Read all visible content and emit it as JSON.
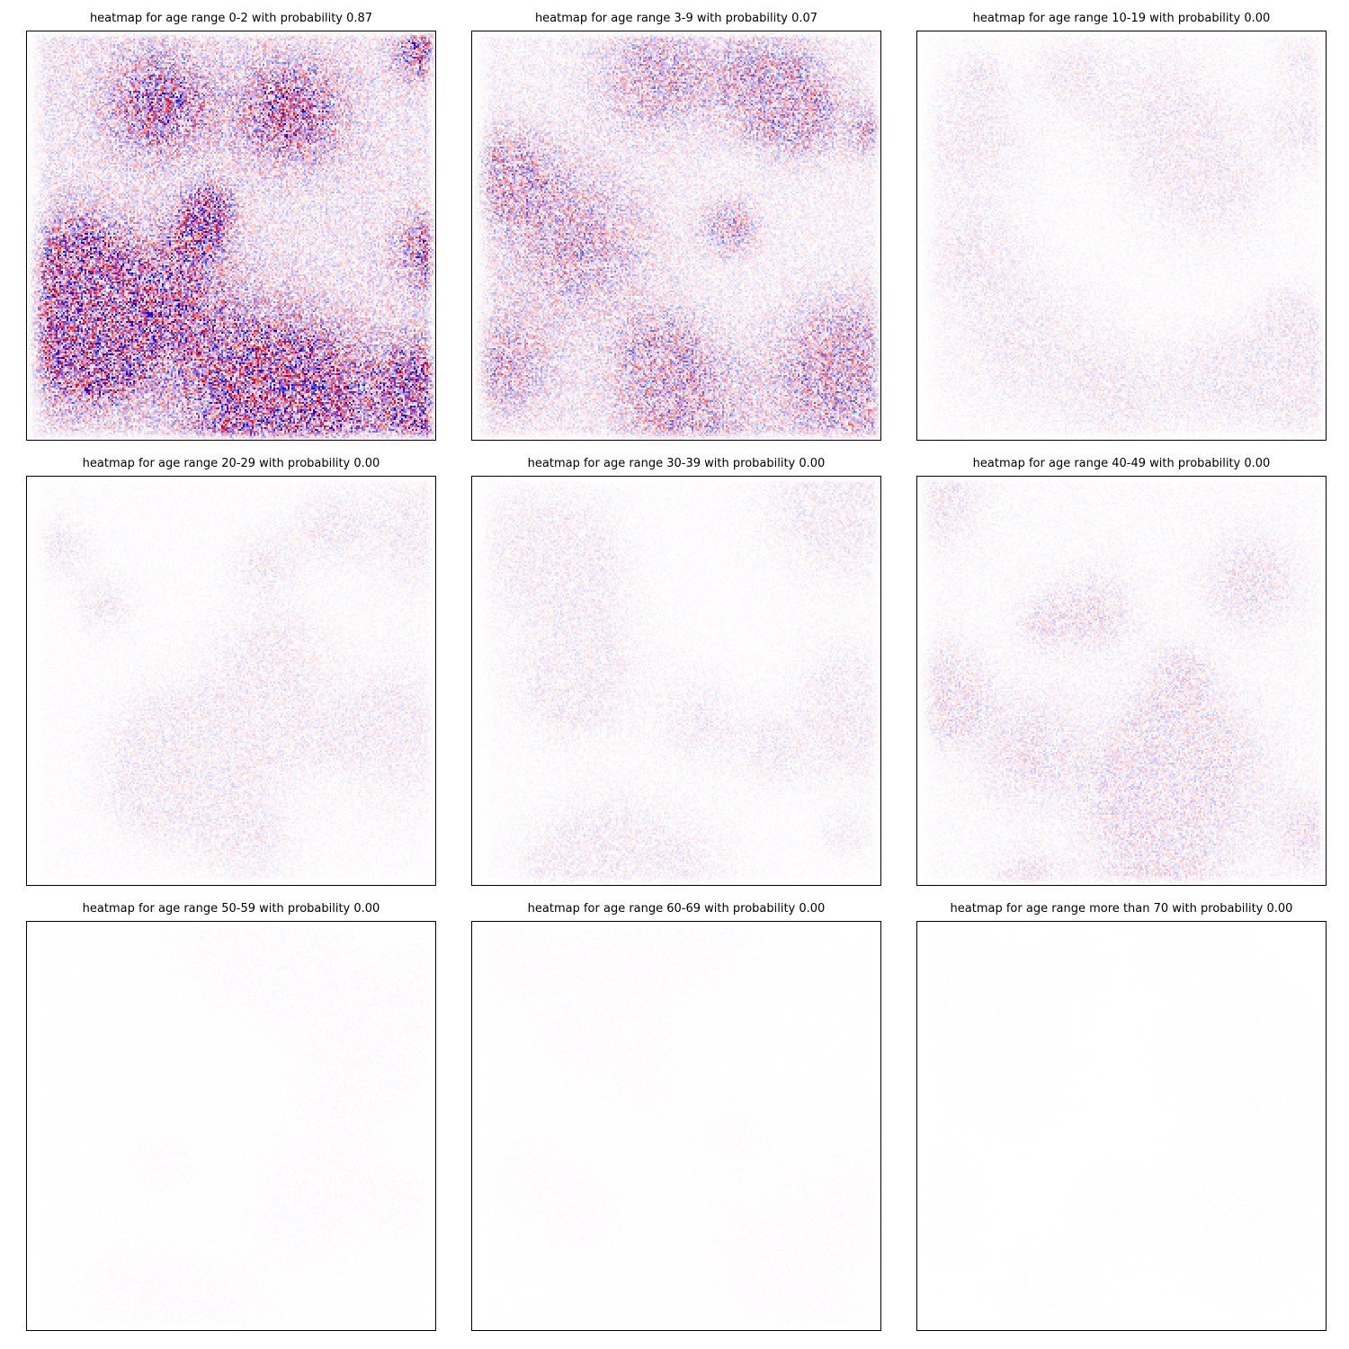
{
  "chart_data": [
    {
      "type": "heatmap",
      "title": "heatmap for age range 0-2 with probability 0.87",
      "probability": 0.87,
      "intensity": 1.0,
      "colormap": "bwr",
      "axes_ticks": false
    },
    {
      "type": "heatmap",
      "title": "heatmap for age range 3-9 with probability 0.07",
      "probability": 0.07,
      "intensity": 0.55,
      "colormap": "bwr",
      "axes_ticks": false
    },
    {
      "type": "heatmap",
      "title": "heatmap for age range 10-19 with probability 0.00",
      "probability": 0.0,
      "intensity": 0.14,
      "colormap": "bwr",
      "axes_ticks": false
    },
    {
      "type": "heatmap",
      "title": "heatmap for age range 20-29 with probability 0.00",
      "probability": 0.0,
      "intensity": 0.13,
      "colormap": "bwr",
      "axes_ticks": false
    },
    {
      "type": "heatmap",
      "title": "heatmap for age range 30-39 with probability 0.00",
      "probability": 0.0,
      "intensity": 0.12,
      "colormap": "bwr",
      "axes_ticks": false
    },
    {
      "type": "heatmap",
      "title": "heatmap for age range 40-49 with probability 0.00",
      "probability": 0.0,
      "intensity": 0.2,
      "colormap": "bwr",
      "axes_ticks": false
    },
    {
      "type": "heatmap",
      "title": "heatmap for age range 50-59 with probability 0.00",
      "probability": 0.0,
      "intensity": 0.025,
      "colormap": "bwr",
      "axes_ticks": false
    },
    {
      "type": "heatmap",
      "title": "heatmap for age range 60-69 with probability 0.00",
      "probability": 0.0,
      "intensity": 0.02,
      "colormap": "bwr",
      "axes_ticks": false
    },
    {
      "type": "heatmap",
      "title": "heatmap for age range more than 70 with probability 0.00",
      "probability": 0.0,
      "intensity": 0.01,
      "colormap": "bwr",
      "axes_ticks": false
    }
  ]
}
